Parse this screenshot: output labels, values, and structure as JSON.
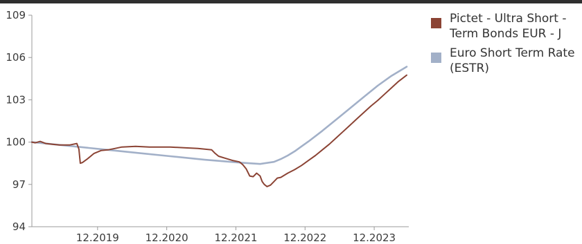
{
  "chart_data": {
    "type": "line",
    "title": "",
    "xlabel": "",
    "ylabel": "",
    "ylim": [
      94,
      109
    ],
    "yticks": [
      94,
      97,
      100,
      103,
      106,
      109
    ],
    "xticks": [
      "12.2019",
      "12.2020",
      "12.2021",
      "12.2022",
      "12.2023"
    ],
    "xtick_positions": [
      2019.95,
      2020.95,
      2021.95,
      2022.95,
      2023.95
    ],
    "xlim": [
      2019.0,
      2024.45
    ],
    "grid": false,
    "legend_position": "right",
    "series": [
      {
        "name": "Pictet - Ultra Short -Term Bonds EUR - J",
        "color": "#8b4334",
        "x": [
          2019.0,
          2019.05,
          2019.12,
          2019.2,
          2019.3,
          2019.4,
          2019.55,
          2019.65,
          2019.68,
          2019.7,
          2019.73,
          2019.8,
          2019.9,
          2020.0,
          2020.1,
          2020.2,
          2020.3,
          2020.5,
          2020.7,
          2020.9,
          2021.0,
          2021.2,
          2021.4,
          2021.5,
          2021.6,
          2021.65,
          2021.7,
          2021.8,
          2021.9,
          2022.0,
          2022.05,
          2022.1,
          2022.15,
          2022.2,
          2022.25,
          2022.3,
          2022.33,
          2022.36,
          2022.4,
          2022.45,
          2022.5,
          2022.55,
          2022.6,
          2022.7,
          2022.8,
          2022.9,
          2023.0,
          2023.1,
          2023.2,
          2023.3,
          2023.4,
          2023.5,
          2023.6,
          2023.7,
          2023.8,
          2023.9,
          2024.0,
          2024.1,
          2024.2,
          2024.3,
          2024.42
        ],
        "values": [
          100.0,
          99.95,
          100.05,
          99.9,
          99.85,
          99.8,
          99.8,
          99.9,
          99.5,
          98.5,
          98.55,
          98.8,
          99.2,
          99.4,
          99.45,
          99.55,
          99.65,
          99.7,
          99.65,
          99.65,
          99.65,
          99.6,
          99.55,
          99.5,
          99.45,
          99.2,
          99.0,
          98.85,
          98.7,
          98.6,
          98.4,
          98.1,
          97.6,
          97.55,
          97.8,
          97.6,
          97.2,
          97.0,
          96.85,
          96.95,
          97.2,
          97.45,
          97.5,
          97.8,
          98.05,
          98.35,
          98.7,
          99.05,
          99.45,
          99.85,
          100.3,
          100.75,
          101.2,
          101.65,
          102.1,
          102.55,
          102.95,
          103.4,
          103.85,
          104.3,
          104.75
        ]
      },
      {
        "name": "Euro Short Term Rate (ESTR)",
        "color": "#a2b0c8",
        "x": [
          2019.0,
          2019.5,
          2020.0,
          2020.5,
          2021.0,
          2021.5,
          2022.0,
          2022.3,
          2022.5,
          2022.6,
          2022.7,
          2022.8,
          2022.9,
          2023.0,
          2023.2,
          2023.4,
          2023.6,
          2023.8,
          2024.0,
          2024.2,
          2024.42
        ],
        "values": [
          100.0,
          99.75,
          99.5,
          99.25,
          99.0,
          98.75,
          98.55,
          98.45,
          98.6,
          98.8,
          99.05,
          99.35,
          99.7,
          100.05,
          100.8,
          101.6,
          102.4,
          103.2,
          104.0,
          104.7,
          105.35
        ]
      }
    ]
  }
}
